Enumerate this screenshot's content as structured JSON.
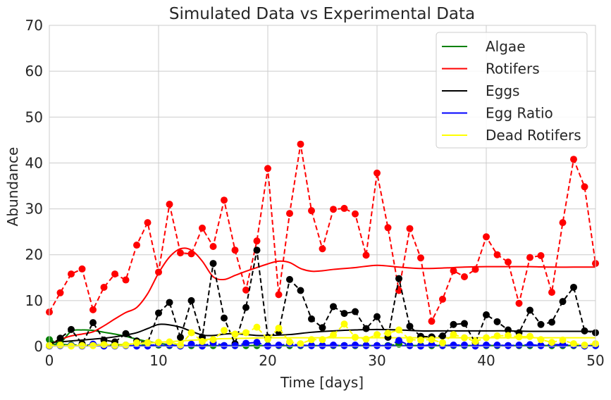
{
  "chart_data": {
    "type": "line",
    "title": "Simulated Data vs Experimental Data",
    "xlabel": "Time [days]",
    "ylabel": "Abundance",
    "xlim": [
      0,
      50
    ],
    "ylim": [
      0,
      70
    ],
    "xticks": [
      0,
      10,
      20,
      30,
      40,
      50
    ],
    "yticks": [
      0,
      10,
      20,
      30,
      40,
      50,
      60,
      70
    ],
    "grid": true,
    "legend_position": "top-right",
    "series": [
      {
        "name": "Algae",
        "color": "#008000",
        "simulated": {
          "x": [
            0,
            1,
            2,
            3,
            4,
            5,
            6,
            7,
            8,
            9,
            10,
            11,
            12,
            14,
            20,
            30,
            40,
            50
          ],
          "y": [
            0.5,
            0.8,
            3.3,
            3.6,
            3.5,
            3.1,
            2.7,
            2.2,
            1.6,
            1.1,
            0.7,
            0.4,
            0.2,
            0.1,
            0.1,
            0.1,
            0.1,
            0.1
          ]
        },
        "experimental": {
          "x": [
            0,
            1,
            2,
            3,
            4,
            5,
            6,
            7,
            8,
            9,
            10,
            11,
            12,
            13,
            14,
            15,
            16,
            17,
            18,
            19,
            20,
            21,
            22,
            23,
            24,
            25,
            26,
            27,
            28,
            29,
            30,
            31,
            32,
            33,
            34,
            35,
            36,
            37,
            38,
            39,
            40,
            41,
            42,
            43,
            44,
            45,
            46,
            47,
            48,
            49,
            50
          ],
          "y": [
            1.5,
            0.5,
            0.3,
            0.3,
            0.3,
            0.4,
            0.3,
            0.3,
            0.3,
            0.3,
            0.3,
            0.2,
            0.2,
            0.2,
            0.2,
            0.2,
            0.2,
            0.2,
            0.2,
            0.2,
            0.2,
            0.2,
            0.2,
            0.2,
            0.2,
            0.2,
            0.2,
            0.2,
            0.2,
            0.2,
            0.2,
            0.2,
            0.5,
            0.2,
            0.2,
            0.2,
            0.2,
            0.2,
            0.2,
            0.2,
            0.2,
            0.2,
            0.2,
            0.2,
            0.2,
            0.2,
            0.2,
            0.2,
            0.2,
            0.2,
            0.2
          ]
        }
      },
      {
        "name": "Rotifers",
        "color": "#ff0000",
        "simulated": {
          "x": [
            0,
            1,
            2,
            3,
            4,
            5,
            6,
            7,
            8,
            9,
            10,
            11,
            12,
            13,
            14,
            15,
            16,
            17,
            18,
            19,
            20,
            21,
            22,
            23,
            24,
            25,
            26,
            28,
            30,
            32,
            34,
            36,
            38,
            40,
            42,
            44,
            46,
            48,
            50
          ],
          "y": [
            0.4,
            1.5,
            2.3,
            2.7,
            3.2,
            4.5,
            6.0,
            7.4,
            8.5,
            11.5,
            16.0,
            19.5,
            21.3,
            21.0,
            18.6,
            15.2,
            14.6,
            15.5,
            16.4,
            17.2,
            18.0,
            18.6,
            18.3,
            17.0,
            16.4,
            16.5,
            16.8,
            17.2,
            17.7,
            17.3,
            17.0,
            17.1,
            17.3,
            17.4,
            17.4,
            17.4,
            17.3,
            17.3,
            17.3
          ]
        },
        "experimental": {
          "x": [
            0,
            1,
            2,
            3,
            4,
            5,
            6,
            7,
            8,
            9,
            10,
            11,
            12,
            13,
            14,
            15,
            16,
            17,
            18,
            19,
            20,
            21,
            22,
            23,
            24,
            25,
            26,
            27,
            28,
            29,
            30,
            31,
            32,
            33,
            34,
            35,
            36,
            37,
            38,
            39,
            40,
            41,
            42,
            43,
            44,
            45,
            46,
            47,
            48,
            49,
            50
          ],
          "y": [
            7.5,
            11.7,
            15.8,
            16.9,
            8.0,
            12.9,
            15.8,
            14.5,
            22.1,
            27.0,
            16.2,
            31.0,
            20.4,
            20.2,
            25.8,
            21.8,
            31.9,
            21.0,
            12.3,
            23.0,
            38.8,
            11.3,
            29.0,
            44.1,
            29.6,
            21.3,
            29.9,
            30.1,
            28.9,
            19.9,
            37.8,
            25.9,
            12.2,
            25.7,
            19.3,
            5.5,
            10.3,
            16.5,
            15.2,
            16.8,
            23.9,
            20.0,
            18.4,
            9.4,
            19.4,
            19.8,
            11.8,
            27.0,
            40.8,
            34.8,
            18.1
          ]
        }
      },
      {
        "name": "Eggs",
        "color": "#000000",
        "simulated": {
          "x": [
            0,
            1,
            2,
            3,
            4,
            5,
            6,
            7,
            8,
            9,
            10,
            11,
            12,
            13,
            14,
            15,
            16,
            17,
            18,
            19,
            20,
            22,
            24,
            26,
            28,
            30,
            32,
            34,
            36,
            38,
            40,
            42,
            44,
            46,
            48,
            50
          ],
          "y": [
            0.9,
            1.0,
            1.2,
            1.4,
            1.6,
            1.8,
            2.1,
            2.5,
            3.0,
            3.9,
            4.8,
            4.7,
            4.2,
            3.3,
            2.5,
            2.4,
            2.7,
            2.8,
            2.6,
            2.4,
            2.4,
            2.6,
            3.1,
            3.4,
            3.6,
            3.7,
            3.6,
            3.4,
            3.4,
            3.4,
            3.4,
            3.4,
            3.3,
            3.3,
            3.3,
            3.3
          ]
        },
        "experimental": {
          "x": [
            0,
            1,
            2,
            3,
            4,
            5,
            6,
            7,
            8,
            9,
            10,
            11,
            12,
            13,
            14,
            15,
            16,
            17,
            18,
            19,
            20,
            21,
            22,
            23,
            24,
            25,
            26,
            27,
            28,
            29,
            30,
            31,
            32,
            33,
            34,
            35,
            36,
            37,
            38,
            39,
            40,
            41,
            42,
            43,
            44,
            45,
            46,
            47,
            48,
            49,
            50
          ],
          "y": [
            0.2,
            1.8,
            3.7,
            0.6,
            5.2,
            1.4,
            1.0,
            2.8,
            1.2,
            0.8,
            7.3,
            9.6,
            2.0,
            10.0,
            2.0,
            18.1,
            6.2,
            0.6,
            8.5,
            21.0,
            2.0,
            3.2,
            14.6,
            12.2,
            6.0,
            4.1,
            8.7,
            7.2,
            7.6,
            3.9,
            6.5,
            2.0,
            14.8,
            4.4,
            2.2,
            2.1,
            2.3,
            4.8,
            5.0,
            0.8,
            6.9,
            5.4,
            3.6,
            3.0,
            7.9,
            4.8,
            5.3,
            9.8,
            12.9,
            3.4,
            3.0
          ]
        }
      },
      {
        "name": "Egg Ratio",
        "color": "#0000ff",
        "simulated": {
          "x": [
            0,
            5,
            10,
            15,
            20,
            25,
            30,
            35,
            40,
            45,
            50
          ],
          "y": [
            0.2,
            0.2,
            0.2,
            0.2,
            0.2,
            0.2,
            0.2,
            0.2,
            0.2,
            0.2,
            0.2
          ]
        },
        "experimental": {
          "x": [
            0,
            1,
            2,
            3,
            4,
            5,
            6,
            7,
            8,
            9,
            10,
            11,
            12,
            13,
            14,
            15,
            16,
            17,
            18,
            19,
            20,
            21,
            22,
            23,
            24,
            25,
            26,
            27,
            28,
            29,
            30,
            31,
            32,
            33,
            34,
            35,
            36,
            37,
            38,
            39,
            40,
            41,
            42,
            43,
            44,
            45,
            46,
            47,
            48,
            49,
            50
          ],
          "y": [
            0.1,
            0.2,
            0.2,
            0.1,
            0.5,
            0.1,
            0.1,
            0.2,
            0.1,
            0.1,
            0.5,
            0.3,
            0.1,
            0.5,
            0.1,
            0.8,
            0.2,
            0.2,
            0.7,
            0.9,
            0.1,
            0.3,
            0.5,
            0.3,
            0.2,
            0.2,
            0.3,
            0.2,
            0.3,
            0.2,
            0.2,
            0.1,
            1.3,
            0.2,
            0.1,
            0.4,
            0.2,
            0.3,
            0.3,
            0.1,
            0.3,
            0.3,
            0.2,
            0.3,
            0.4,
            0.2,
            0.4,
            0.4,
            0.3,
            0.1,
            0.2
          ]
        }
      },
      {
        "name": "Dead Rotifers",
        "color": "#ffff00",
        "simulated": {
          "x": [
            0,
            2,
            4,
            6,
            8,
            10,
            12,
            14,
            16,
            18,
            20,
            22,
            24,
            26,
            28,
            30,
            32,
            34,
            36,
            38,
            40,
            42,
            44,
            46,
            48,
            50
          ],
          "y": [
            0.1,
            0.2,
            0.3,
            0.4,
            0.6,
            0.9,
            1.2,
            1.5,
            1.7,
            1.8,
            1.9,
            1.9,
            1.9,
            1.9,
            1.9,
            1.9,
            1.9,
            1.9,
            1.9,
            1.9,
            1.9,
            1.9,
            1.9,
            1.9,
            1.9,
            1.9
          ]
        },
        "experimental": {
          "x": [
            0,
            1,
            2,
            3,
            4,
            5,
            6,
            7,
            8,
            9,
            10,
            11,
            12,
            13,
            14,
            15,
            16,
            17,
            18,
            19,
            20,
            21,
            22,
            23,
            24,
            25,
            26,
            27,
            28,
            29,
            30,
            31,
            32,
            33,
            34,
            35,
            36,
            37,
            38,
            39,
            40,
            41,
            42,
            43,
            44,
            45,
            46,
            47,
            48,
            49,
            50
          ],
          "y": [
            0.2,
            0.3,
            0.1,
            0.2,
            0.2,
            0.4,
            0.2,
            0.3,
            0.8,
            0.8,
            0.9,
            1.0,
            0.3,
            3.0,
            1.1,
            1.5,
            3.5,
            2.7,
            3.0,
            4.2,
            1.6,
            4.0,
            1.0,
            0.6,
            1.5,
            1.5,
            2.5,
            4.9,
            2.0,
            1.6,
            2.6,
            2.9,
            3.6,
            1.5,
            1.4,
            1.5,
            0.8,
            2.6,
            1.9,
            1.1,
            1.9,
            2.3,
            2.4,
            2.1,
            2.2,
            1.5,
            0.9,
            1.4,
            0.6,
            0.3,
            0.6
          ]
        }
      }
    ]
  }
}
